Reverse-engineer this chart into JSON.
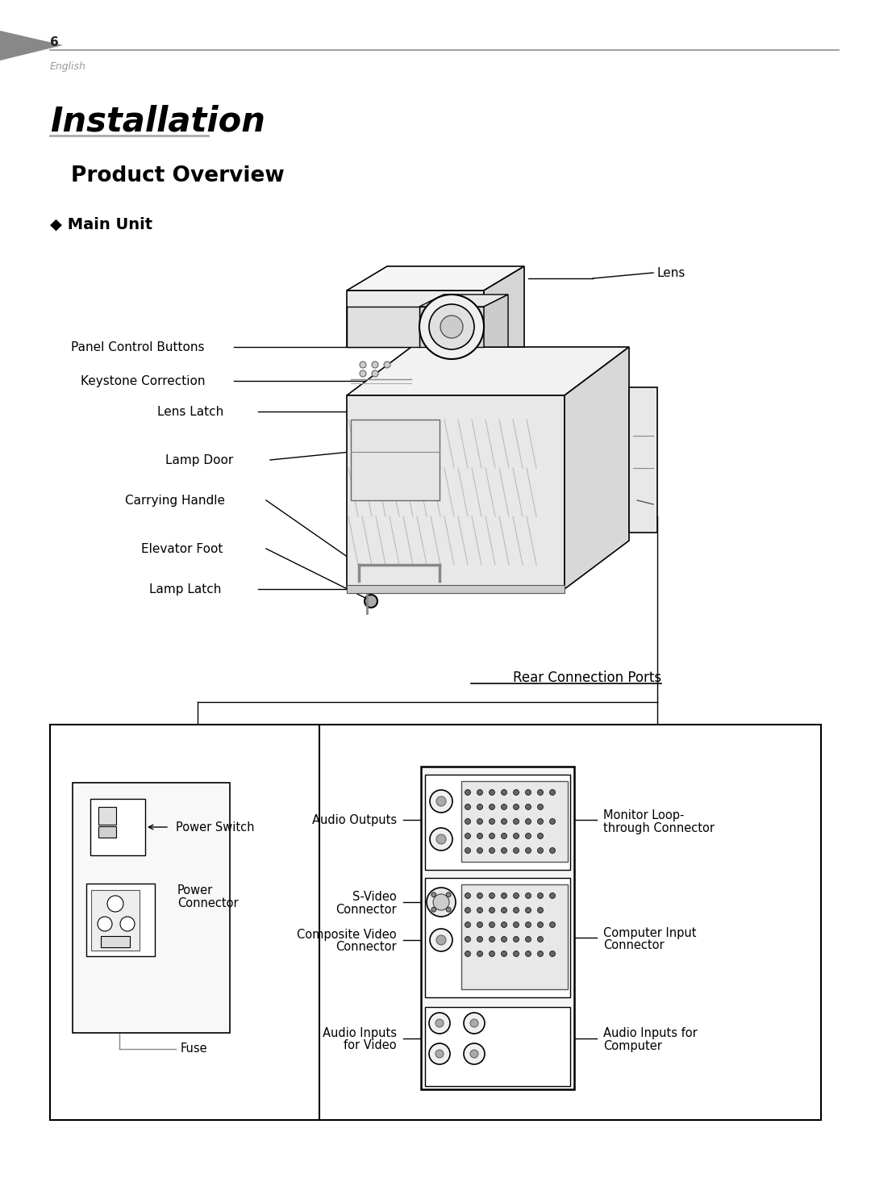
{
  "page_number": "6",
  "page_label": "English",
  "title": "Installation",
  "section": "Product Overview",
  "subsection": "◆ Main Unit",
  "bg_color": "#ffffff",
  "text_color": "#000000",
  "gray_tri_color": "#888888",
  "header_line_color": "#888888"
}
